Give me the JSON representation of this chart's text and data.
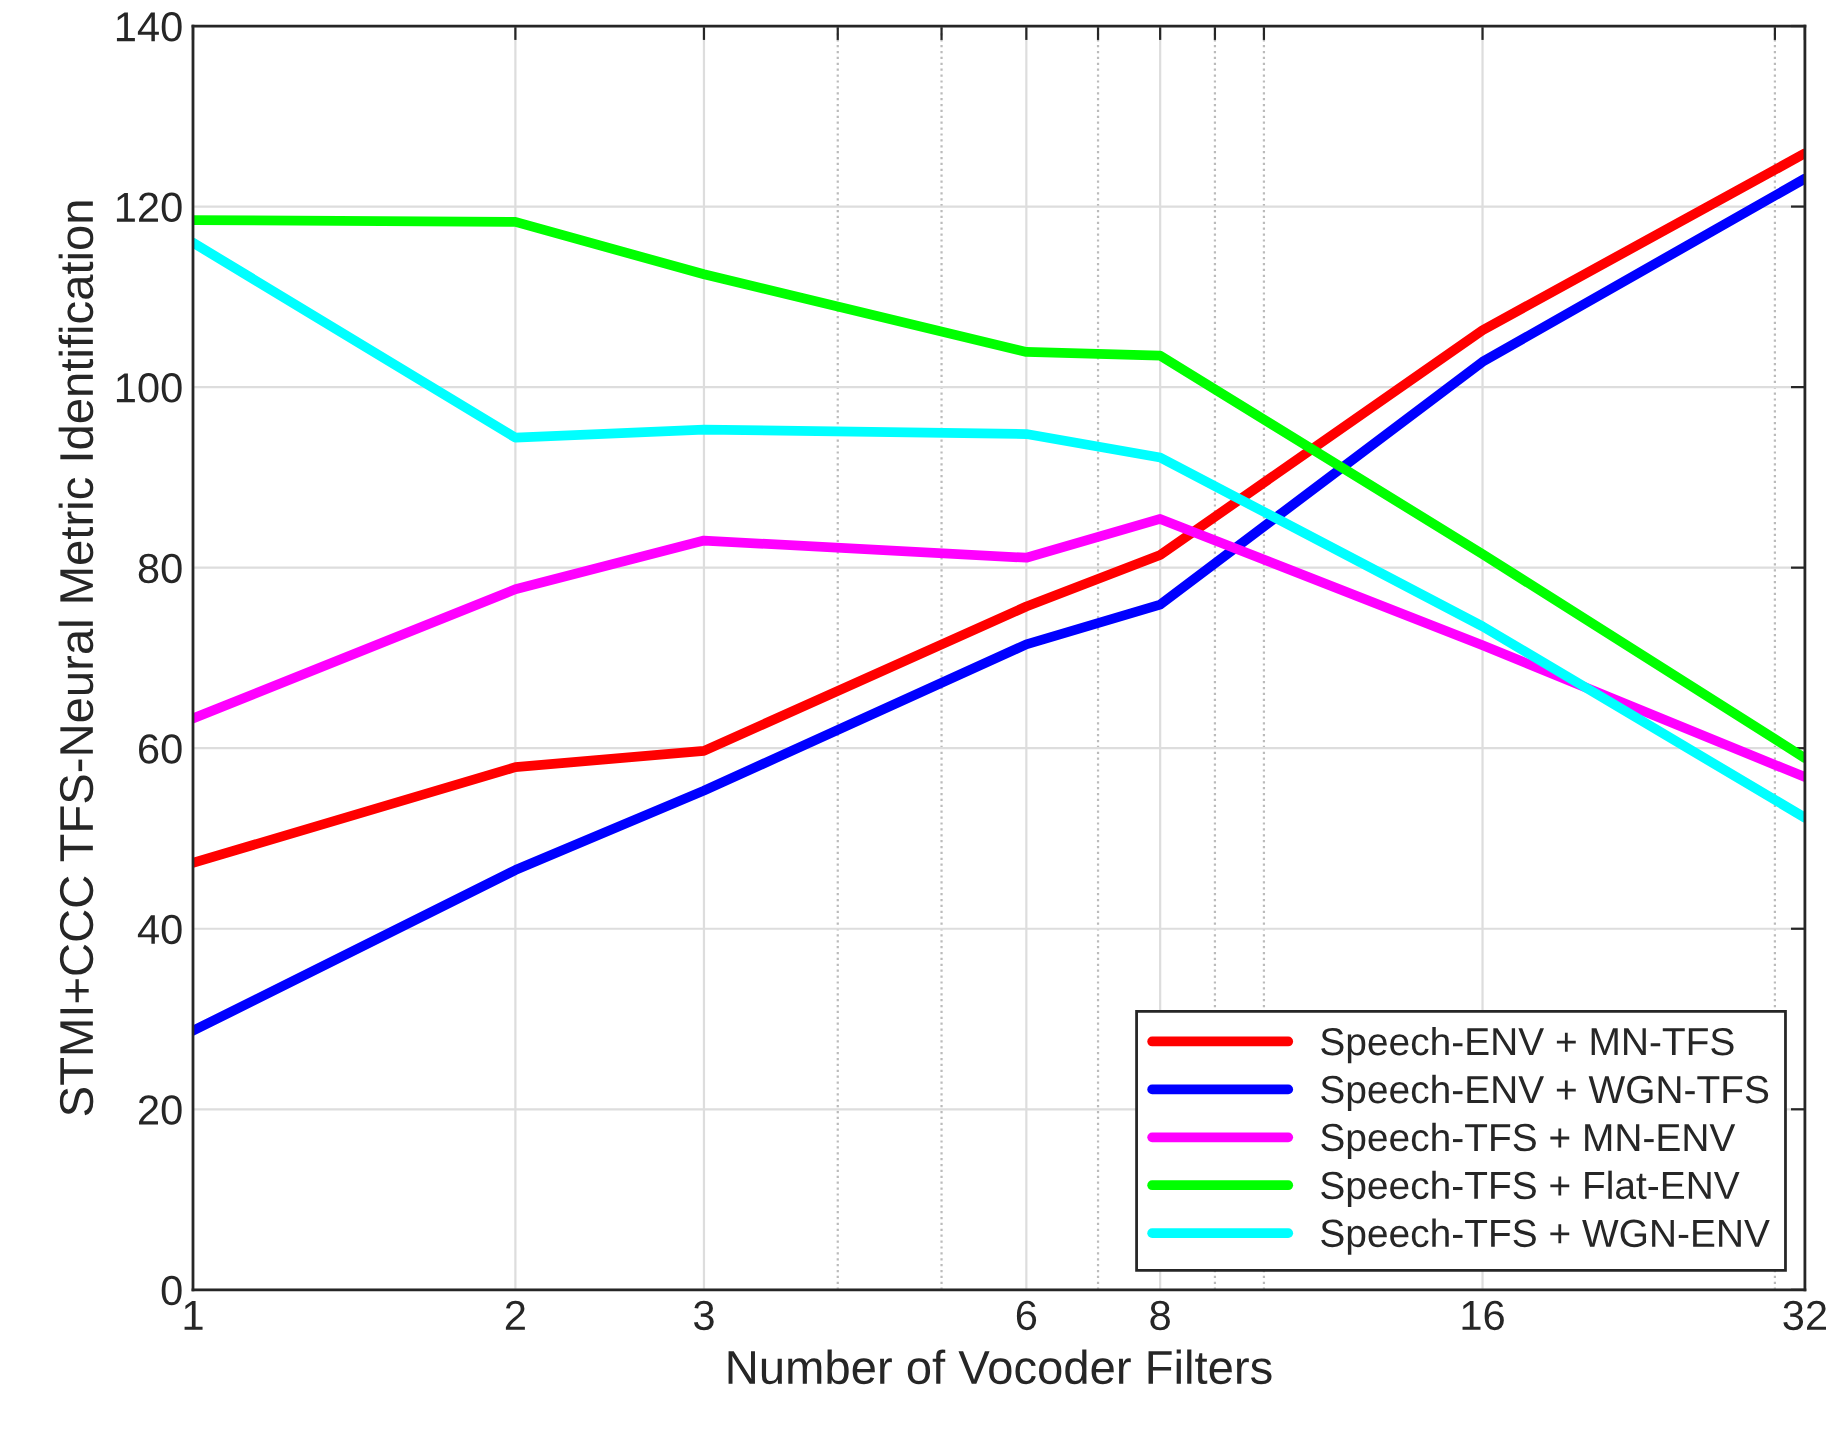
{
  "chart_data": {
    "type": "line",
    "xlabel": "Number of Vocoder Filters",
    "ylabel": "STMI+CCC TFS-Neural Metric Identification",
    "x": [
      1,
      2,
      3,
      6,
      8,
      16,
      32
    ],
    "series": [
      {
        "name": "Speech-ENV + MN-TFS",
        "color": "#ff0000",
        "values": [
          47.3,
          57.9,
          59.7,
          75.7,
          81.4,
          106.3,
          125.9
        ]
      },
      {
        "name": "Speech-ENV + WGN-TFS",
        "color": "#0000ff",
        "values": [
          28.7,
          46.5,
          55.3,
          71.5,
          75.9,
          102.8,
          123.1
        ]
      },
      {
        "name": "Speech-TFS + MN-ENV",
        "color": "#ff00ff",
        "values": [
          63.3,
          77.6,
          83.0,
          81.1,
          85.4,
          71.4,
          56.8
        ]
      },
      {
        "name": "Speech-TFS + Flat-ENV",
        "color": "#00ff00",
        "values": [
          118.5,
          118.3,
          112.5,
          103.9,
          103.5,
          81.5,
          58.9
        ]
      },
      {
        "name": "Speech-TFS + WGN-ENV",
        "color": "#00ffff",
        "values": [
          116.0,
          94.4,
          95.3,
          94.8,
          92.2,
          73.5,
          52.3
        ]
      }
    ],
    "log": "x",
    "xlim": [
      1,
      32
    ],
    "xticks": [
      1,
      2,
      3,
      {
        "value": 4,
        "label": null
      },
      {
        "value": 5,
        "label": null
      },
      6,
      {
        "value": 7,
        "label": null
      },
      8,
      {
        "value": 9,
        "label": null
      },
      {
        "value": 10,
        "label": null
      },
      16,
      {
        "value": 30,
        "label": null
      },
      32
    ],
    "ylim": [
      0,
      140
    ],
    "yticks": [
      0,
      20,
      40,
      60,
      80,
      100,
      120,
      140
    ],
    "grid": true,
    "legend": "bottom right",
    "marker": "none",
    "line_style": "solid"
  }
}
